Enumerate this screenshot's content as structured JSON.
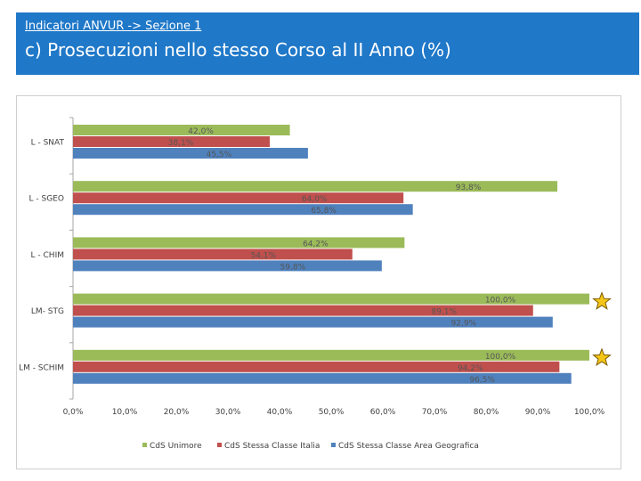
{
  "header": {
    "subtitle": "Indicatori ANVUR -> Sezione 1",
    "title": "c) Prosecuzioni nello stesso Corso al II Anno (%)"
  },
  "chart_data": {
    "type": "bar",
    "orientation": "horizontal",
    "categories": [
      "L - SNAT",
      "L - SGEO",
      "L - CHIM",
      "LM- STG",
      "LM - SCHIM"
    ],
    "series": [
      {
        "name": "CdS Unimore",
        "color": "#9bbb59",
        "values": [
          42.0,
          93.8,
          64.2,
          100.0,
          100.0
        ],
        "labels": [
          "42,0%",
          "93,8%",
          "64,2%",
          "100,0%",
          "100,0%"
        ]
      },
      {
        "name": "CdS Stessa Classe Italia",
        "color": "#c0504d",
        "values": [
          38.1,
          64.0,
          54.1,
          89.1,
          94.2
        ],
        "labels": [
          "38,1%",
          "64,0%",
          "54,1%",
          "89,1%",
          "94,2%"
        ]
      },
      {
        "name": "CdS Stessa Classe Area Geografica",
        "color": "#4f81bd",
        "values": [
          45.5,
          65.8,
          59.8,
          92.9,
          96.5
        ],
        "labels": [
          "45,5%",
          "65,8%",
          "59,8%",
          "92,9%",
          "96,5%"
        ]
      }
    ],
    "xlim": [
      0,
      100
    ],
    "xticks": [
      "0,0%",
      "10,0%",
      "20,0%",
      "30,0%",
      "40,0%",
      "50,0%",
      "60,0%",
      "70,0%",
      "80,0%",
      "90,0%",
      "100,0%"
    ],
    "legend_position": "bottom",
    "star_markers": [
      "LM- STG",
      "LM - SCHIM"
    ],
    "star_color": "#f5c518",
    "grid": false
  }
}
